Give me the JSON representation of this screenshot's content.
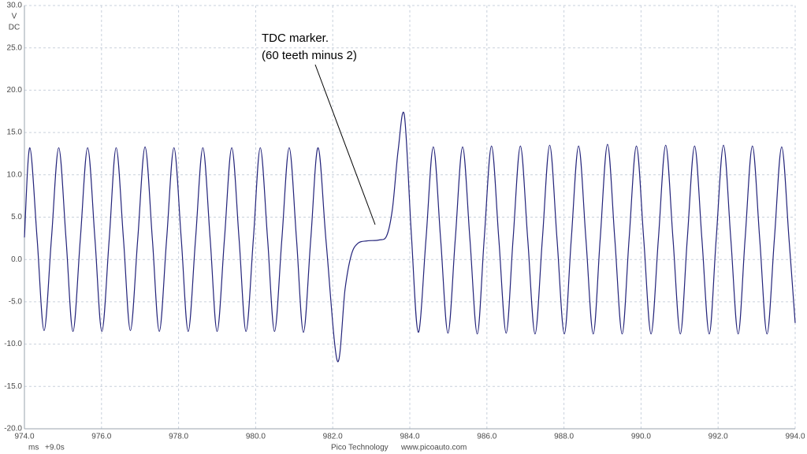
{
  "chart_data": {
    "type": "line",
    "color": "#23237a",
    "grid": true,
    "y_unit": [
      "V",
      "DC"
    ],
    "x_unit": "ms",
    "time_offset": "+9.0s",
    "footer": [
      "Pico Technology",
      "www.picoauto.com"
    ],
    "annotation": [
      "TDC marker.",
      "(60 teeth minus 2)"
    ],
    "xlim": [
      974,
      994
    ],
    "ylim": [
      -20,
      30
    ],
    "xticks": [
      {
        "value": 974,
        "label": "974.0"
      },
      {
        "value": 976,
        "label": "976.0"
      },
      {
        "value": 978,
        "label": "978.0"
      },
      {
        "value": 980,
        "label": "980.0"
      },
      {
        "value": 982,
        "label": "982.0"
      },
      {
        "value": 984,
        "label": "984.0"
      },
      {
        "value": 986,
        "label": "986.0"
      },
      {
        "value": 988,
        "label": "988.0"
      },
      {
        "value": 990,
        "label": "990.0"
      },
      {
        "value": 992,
        "label": "992.0"
      },
      {
        "value": 994,
        "label": "994.0"
      }
    ],
    "yticks": [
      {
        "value": 30,
        "label": "30.0"
      },
      {
        "value": 25,
        "label": "25.0"
      },
      {
        "value": 20,
        "label": "20.0"
      },
      {
        "value": 15,
        "label": "15.0"
      },
      {
        "value": 10,
        "label": "10.0"
      },
      {
        "value": 5,
        "label": "5.0"
      },
      {
        "value": 0,
        "label": "0.0"
      },
      {
        "value": -5,
        "label": "-5.0"
      },
      {
        "value": -10,
        "label": "-10.0"
      },
      {
        "value": -15,
        "label": "-15.0"
      },
      {
        "value": -20,
        "label": "-20.0"
      }
    ],
    "x": [
      974.0,
      974.14,
      974.33,
      974.51,
      974.7,
      974.89,
      975.08,
      975.26,
      975.45,
      975.64,
      975.83,
      976.01,
      976.2,
      976.38,
      976.57,
      976.75,
      976.94,
      977.13,
      977.32,
      977.5,
      977.69,
      977.88,
      978.07,
      978.25,
      978.44,
      978.63,
      978.82,
      979.0,
      979.19,
      979.38,
      979.57,
      979.75,
      979.94,
      980.12,
      980.31,
      980.49,
      980.68,
      980.87,
      981.06,
      981.24,
      981.43,
      981.62,
      981.83,
      982.12,
      982.32,
      982.48,
      982.65,
      982.9,
      983.2,
      983.4,
      983.55,
      983.7,
      983.86,
      984.04,
      984.22,
      984.42,
      984.61,
      984.8,
      984.99,
      985.18,
      985.37,
      985.56,
      985.75,
      985.93,
      986.12,
      986.31,
      986.5,
      986.68,
      986.87,
      987.06,
      987.25,
      987.44,
      987.63,
      987.82,
      988.01,
      988.19,
      988.38,
      988.57,
      988.76,
      988.94,
      989.13,
      989.32,
      989.51,
      989.69,
      989.88,
      990.07,
      990.26,
      990.45,
      990.64,
      990.83,
      991.02,
      991.2,
      991.39,
      991.58,
      991.77,
      991.95,
      992.14,
      992.33,
      992.52,
      992.7,
      992.89,
      993.08,
      993.27,
      993.46,
      993.65,
      993.84,
      994.0
    ],
    "values": [
      2.6,
      13.2,
      2.4,
      -8.4,
      2.4,
      13.2,
      2.4,
      -8.5,
      2.4,
      13.2,
      2.4,
      -8.5,
      2.4,
      13.2,
      2.4,
      -8.4,
      2.4,
      13.3,
      2.4,
      -8.5,
      2.4,
      13.2,
      2.4,
      -8.5,
      2.4,
      13.2,
      2.4,
      -8.5,
      2.4,
      13.2,
      2.4,
      -8.5,
      2.4,
      13.2,
      2.4,
      -8.5,
      2.4,
      13.2,
      2.4,
      -8.6,
      2.4,
      13.2,
      2.0,
      -12.0,
      -3.5,
      0.5,
      1.9,
      2.2,
      2.3,
      2.8,
      6.0,
      13.0,
      17.0,
      3.0,
      -8.6,
      2.4,
      13.3,
      2.4,
      -8.7,
      2.4,
      13.3,
      2.4,
      -8.8,
      2.4,
      13.4,
      2.4,
      -8.7,
      2.4,
      13.4,
      2.4,
      -8.8,
      2.4,
      13.5,
      2.4,
      -8.8,
      2.4,
      13.4,
      2.4,
      -8.8,
      2.4,
      13.6,
      2.4,
      -8.8,
      2.4,
      13.4,
      2.4,
      -8.8,
      2.4,
      13.5,
      2.4,
      -8.8,
      2.4,
      13.4,
      2.4,
      -8.8,
      2.4,
      13.5,
      2.4,
      -8.8,
      2.4,
      13.4,
      2.4,
      -8.8,
      2.4,
      13.3,
      2.4,
      -7.5
    ]
  }
}
